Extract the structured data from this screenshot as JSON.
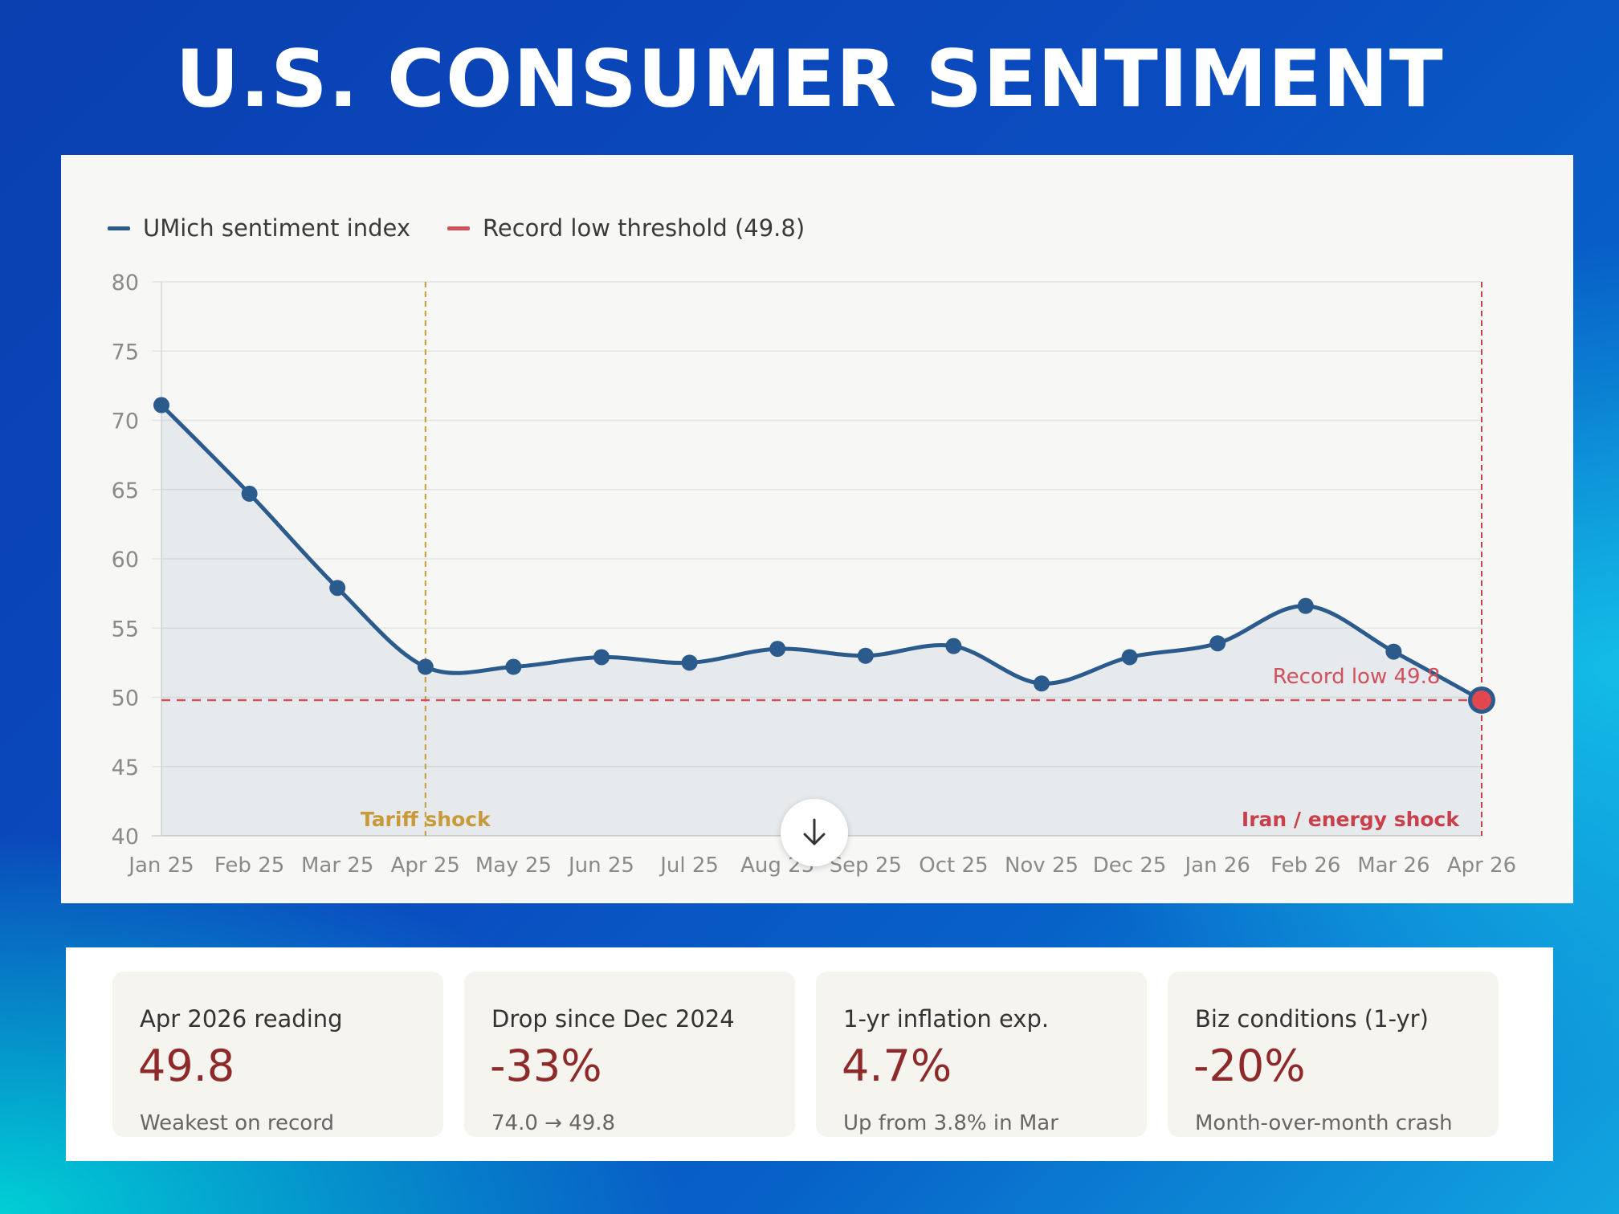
{
  "title": "U.S. CONSUMER SENTIMENT",
  "colors": {
    "series": "#2b5a8c",
    "threshold": "#d0505c",
    "tariff": "#c79a3a",
    "iran": "#c8404c",
    "stat_value": "#8e2a2a"
  },
  "chart_data": {
    "type": "line",
    "title": "",
    "xlabel": "",
    "ylabel": "",
    "categories": [
      "Jan 25",
      "Feb 25",
      "Mar 25",
      "Apr 25",
      "May 25",
      "Jun 25",
      "Jul 25",
      "Aug 25",
      "Sep 25",
      "Oct 25",
      "Nov 25",
      "Dec 25",
      "Jan 26",
      "Feb 26",
      "Mar 26",
      "Apr 26"
    ],
    "series": [
      {
        "name": "UMich sentiment index",
        "values": [
          71.1,
          64.7,
          57.9,
          52.2,
          52.2,
          52.9,
          52.5,
          53.5,
          53.0,
          53.7,
          51.0,
          52.9,
          53.9,
          56.6,
          53.3,
          49.8
        ]
      }
    ],
    "threshold": {
      "name": "Record low threshold (49.8)",
      "value": 49.8,
      "label": "Record low 49.8"
    },
    "ylim": [
      40,
      80
    ],
    "yticks": [
      "80",
      "75",
      "70",
      "65",
      "60",
      "55",
      "50",
      "45",
      "40"
    ],
    "grid": true,
    "legend_position": "top-left",
    "annotations": [
      {
        "name": "tariff",
        "category_index": 3,
        "text": "Tariff shock"
      },
      {
        "name": "iran",
        "category_index": 15,
        "text": "Iran / energy shock"
      }
    ]
  },
  "stats": [
    {
      "label": "Apr 2026 reading",
      "value": "49.8",
      "note": "Weakest on record"
    },
    {
      "label": "Drop since Dec 2024",
      "value": "-33%",
      "note": "74.0 → 49.8"
    },
    {
      "label": "1-yr inflation exp.",
      "value": "4.7%",
      "note": "Up from 3.8% in Mar"
    },
    {
      "label": "Biz conditions (1-yr)",
      "value": "-20%",
      "note": "Month-over-month crash"
    }
  ]
}
